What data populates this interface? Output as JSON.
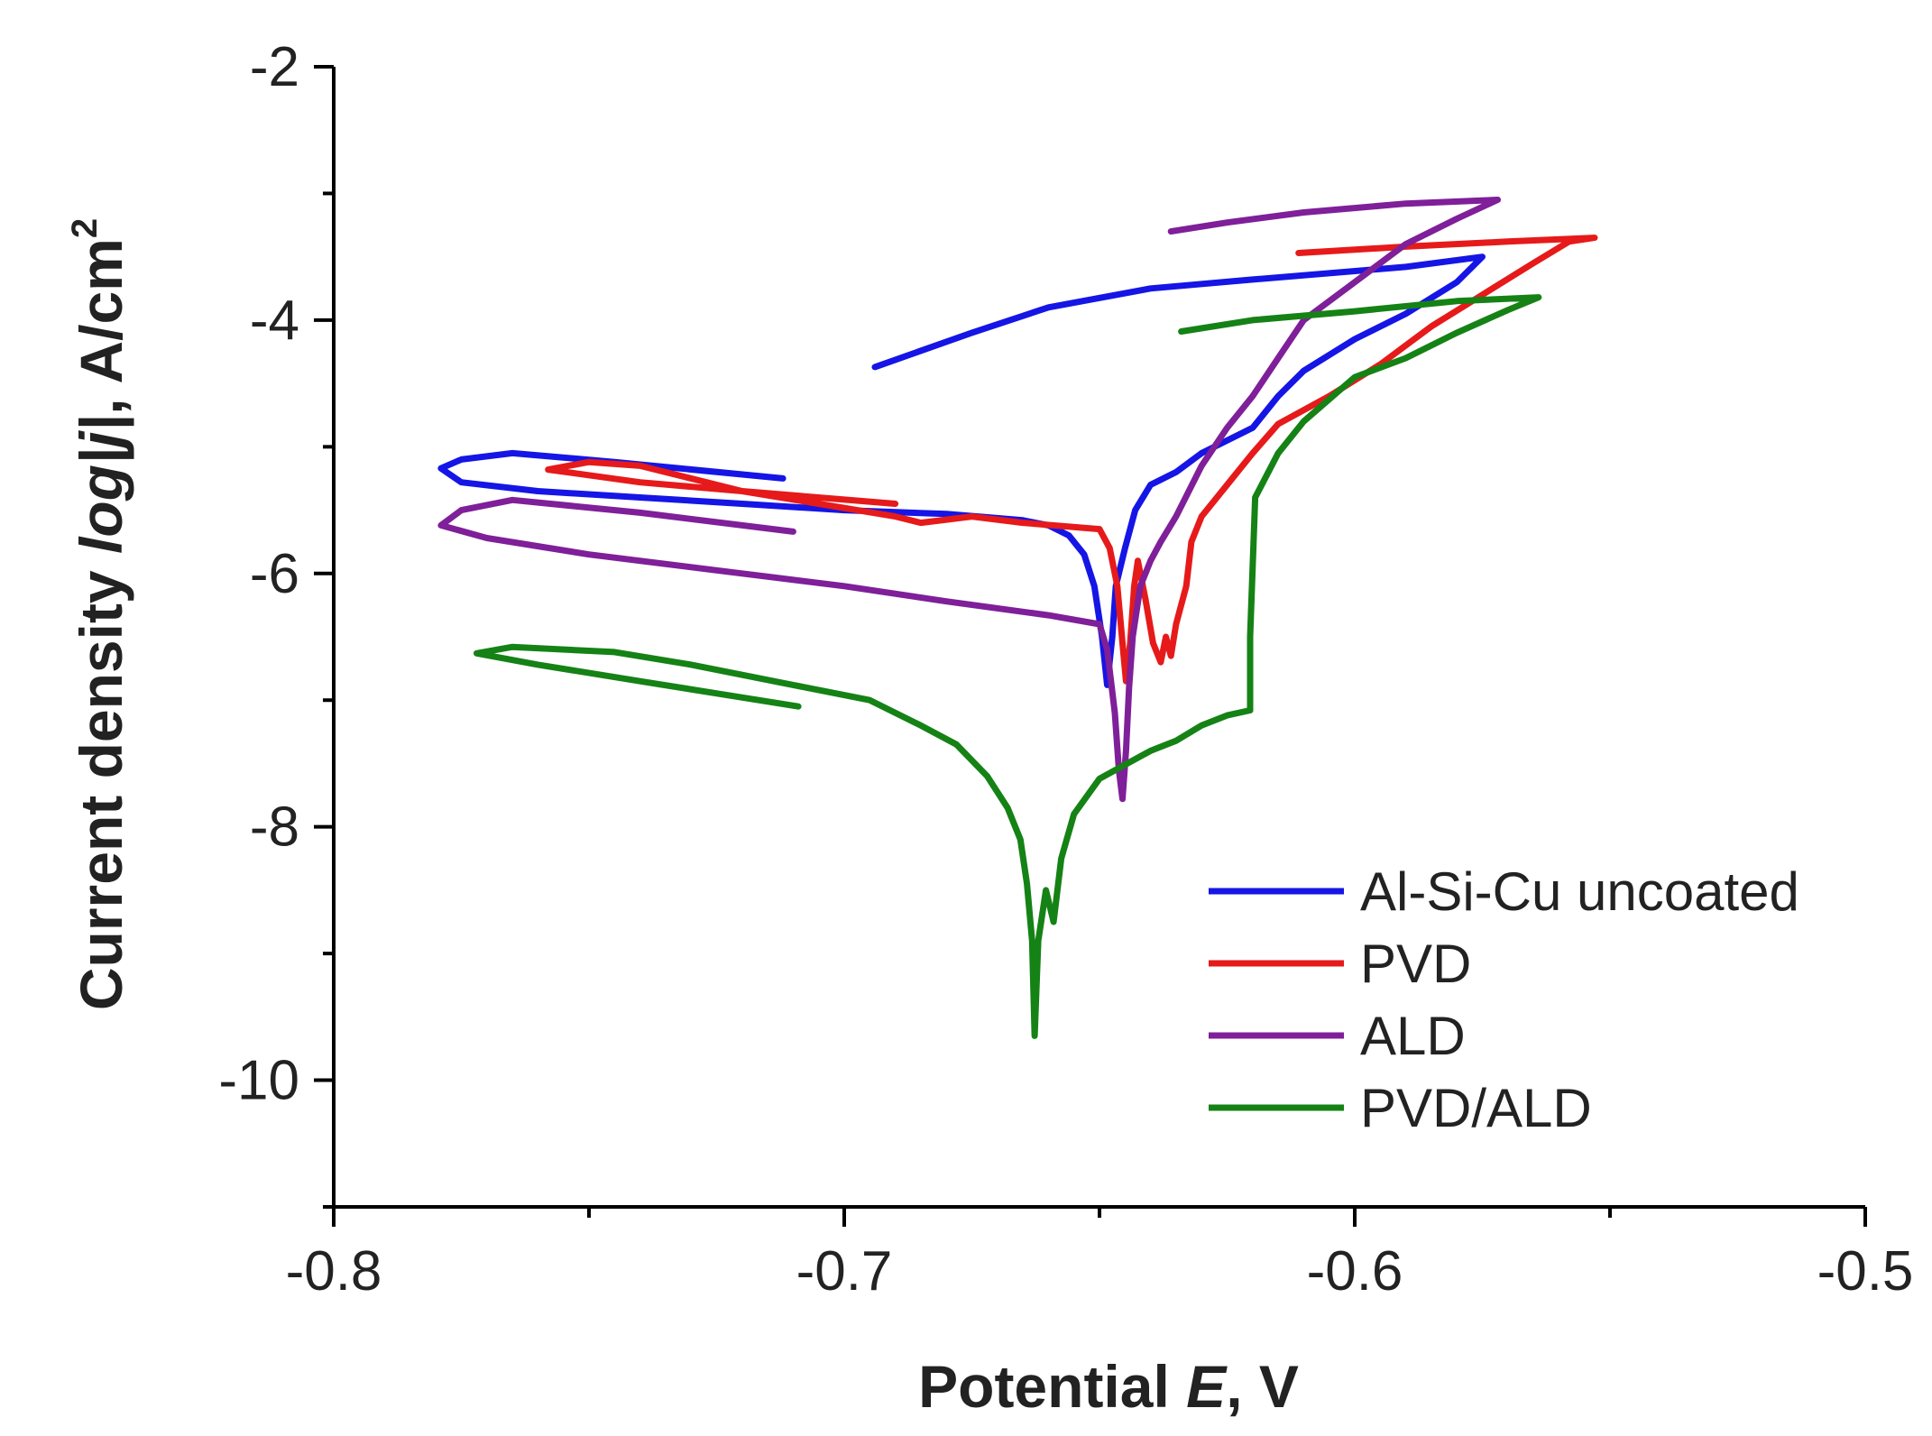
{
  "chart_data": {
    "type": "line",
    "title": "",
    "xlabel": {
      "prefix": "Potential ",
      "italic": "E",
      "suffix": ", V"
    },
    "ylabel": {
      "prefix": "Current density ",
      "italic": "log|j|",
      "suffix": ", A/cm",
      "superscript": "2"
    },
    "xlim": [
      -0.8,
      -0.5
    ],
    "ylim": [
      -11,
      -2
    ],
    "xticks": [
      -0.8,
      -0.7,
      -0.6,
      -0.5
    ],
    "xtick_labels": [
      "-0.8",
      "-0.7",
      "-0.6",
      "-0.5"
    ],
    "xminor": [
      -0.75,
      -0.65,
      -0.55
    ],
    "yticks": [
      -2,
      -4,
      -6,
      -8,
      -10
    ],
    "ytick_labels": [
      "-2",
      "-4",
      "-6",
      "-8",
      "-10"
    ],
    "yminor": [
      -3,
      -5,
      -7,
      -9,
      -11
    ],
    "legend_position": "bottom-right",
    "series": [
      {
        "name": "Al-Si-Cu uncoated",
        "color": "#1515e6",
        "points": [
          [
            -0.712,
            -5.25
          ],
          [
            -0.745,
            -5.12
          ],
          [
            -0.765,
            -5.05
          ],
          [
            -0.775,
            -5.1
          ],
          [
            -0.779,
            -5.17
          ],
          [
            -0.775,
            -5.28
          ],
          [
            -0.76,
            -5.35
          ],
          [
            -0.74,
            -5.4
          ],
          [
            -0.72,
            -5.45
          ],
          [
            -0.7,
            -5.5
          ],
          [
            -0.68,
            -5.53
          ],
          [
            -0.665,
            -5.58
          ],
          [
            -0.66,
            -5.62
          ],
          [
            -0.656,
            -5.7
          ],
          [
            -0.653,
            -5.85
          ],
          [
            -0.651,
            -6.1
          ],
          [
            -0.6495,
            -6.5
          ],
          [
            -0.6485,
            -6.88
          ],
          [
            -0.6475,
            -6.5
          ],
          [
            -0.6468,
            -6.1
          ],
          [
            -0.645,
            -5.8
          ],
          [
            -0.643,
            -5.5
          ],
          [
            -0.64,
            -5.3
          ],
          [
            -0.635,
            -5.2
          ],
          [
            -0.63,
            -5.05
          ],
          [
            -0.62,
            -4.85
          ],
          [
            -0.615,
            -4.6
          ],
          [
            -0.61,
            -4.4
          ],
          [
            -0.6,
            -4.15
          ],
          [
            -0.59,
            -3.95
          ],
          [
            -0.58,
            -3.7
          ],
          [
            -0.575,
            -3.5
          ],
          [
            -0.59,
            -3.58
          ],
          [
            -0.62,
            -3.68
          ],
          [
            -0.64,
            -3.75
          ],
          [
            -0.66,
            -3.9
          ],
          [
            -0.675,
            -4.1
          ],
          [
            -0.694,
            -4.37
          ]
        ]
      },
      {
        "name": "PVD",
        "color": "#e61a1a",
        "points": [
          [
            -0.69,
            -5.45
          ],
          [
            -0.72,
            -5.35
          ],
          [
            -0.74,
            -5.15
          ],
          [
            -0.75,
            -5.12
          ],
          [
            -0.758,
            -5.18
          ],
          [
            -0.74,
            -5.28
          ],
          [
            -0.72,
            -5.35
          ],
          [
            -0.705,
            -5.45
          ],
          [
            -0.69,
            -5.55
          ],
          [
            -0.685,
            -5.6
          ],
          [
            -0.675,
            -5.55
          ],
          [
            -0.665,
            -5.6
          ],
          [
            -0.65,
            -5.65
          ],
          [
            -0.648,
            -5.8
          ],
          [
            -0.6465,
            -6.1
          ],
          [
            -0.6455,
            -6.55
          ],
          [
            -0.6448,
            -6.85
          ],
          [
            -0.644,
            -6.55
          ],
          [
            -0.6432,
            -6.1
          ],
          [
            -0.6425,
            -5.9
          ],
          [
            -0.641,
            -6.2
          ],
          [
            -0.6395,
            -6.55
          ],
          [
            -0.638,
            -6.7
          ],
          [
            -0.637,
            -6.5
          ],
          [
            -0.636,
            -6.65
          ],
          [
            -0.635,
            -6.4
          ],
          [
            -0.633,
            -6.1
          ],
          [
            -0.632,
            -5.75
          ],
          [
            -0.63,
            -5.55
          ],
          [
            -0.625,
            -5.3
          ],
          [
            -0.62,
            -5.05
          ],
          [
            -0.615,
            -4.82
          ],
          [
            -0.605,
            -4.6
          ],
          [
            -0.595,
            -4.35
          ],
          [
            -0.585,
            -4.05
          ],
          [
            -0.575,
            -3.8
          ],
          [
            -0.565,
            -3.55
          ],
          [
            -0.558,
            -3.38
          ],
          [
            -0.553,
            -3.35
          ],
          [
            -0.57,
            -3.38
          ],
          [
            -0.59,
            -3.42
          ],
          [
            -0.611,
            -3.47
          ]
        ]
      },
      {
        "name": "ALD",
        "color": "#7f1f99",
        "points": [
          [
            -0.71,
            -5.67
          ],
          [
            -0.74,
            -5.52
          ],
          [
            -0.765,
            -5.42
          ],
          [
            -0.775,
            -5.5
          ],
          [
            -0.779,
            -5.62
          ],
          [
            -0.77,
            -5.72
          ],
          [
            -0.75,
            -5.85
          ],
          [
            -0.72,
            -6.0
          ],
          [
            -0.7,
            -6.1
          ],
          [
            -0.68,
            -6.22
          ],
          [
            -0.66,
            -6.33
          ],
          [
            -0.65,
            -6.4
          ],
          [
            -0.6485,
            -6.6
          ],
          [
            -0.647,
            -7.1
          ],
          [
            -0.6462,
            -7.55
          ],
          [
            -0.6455,
            -7.78
          ],
          [
            -0.6448,
            -7.4
          ],
          [
            -0.6442,
            -6.9
          ],
          [
            -0.6435,
            -6.5
          ],
          [
            -0.642,
            -6.1
          ],
          [
            -0.64,
            -5.9
          ],
          [
            -0.638,
            -5.75
          ],
          [
            -0.635,
            -5.55
          ],
          [
            -0.63,
            -5.15
          ],
          [
            -0.625,
            -4.85
          ],
          [
            -0.62,
            -4.6
          ],
          [
            -0.615,
            -4.3
          ],
          [
            -0.61,
            -4.0
          ],
          [
            -0.6,
            -3.7
          ],
          [
            -0.59,
            -3.4
          ],
          [
            -0.58,
            -3.2
          ],
          [
            -0.572,
            -3.05
          ],
          [
            -0.59,
            -3.08
          ],
          [
            -0.61,
            -3.15
          ],
          [
            -0.625,
            -3.23
          ],
          [
            -0.636,
            -3.3
          ]
        ]
      },
      {
        "name": "PVD/ALD",
        "color": "#158215",
        "points": [
          [
            -0.709,
            -7.05
          ],
          [
            -0.74,
            -6.85
          ],
          [
            -0.76,
            -6.72
          ],
          [
            -0.772,
            -6.63
          ],
          [
            -0.765,
            -6.58
          ],
          [
            -0.745,
            -6.62
          ],
          [
            -0.73,
            -6.72
          ],
          [
            -0.71,
            -6.88
          ],
          [
            -0.695,
            -7.0
          ],
          [
            -0.685,
            -7.2
          ],
          [
            -0.678,
            -7.35
          ],
          [
            -0.672,
            -7.6
          ],
          [
            -0.668,
            -7.85
          ],
          [
            -0.6655,
            -8.1
          ],
          [
            -0.6642,
            -8.45
          ],
          [
            -0.6632,
            -8.9
          ],
          [
            -0.6627,
            -9.65
          ],
          [
            -0.662,
            -8.9
          ],
          [
            -0.6605,
            -8.5
          ],
          [
            -0.659,
            -8.75
          ],
          [
            -0.6575,
            -8.25
          ],
          [
            -0.655,
            -7.9
          ],
          [
            -0.65,
            -7.62
          ],
          [
            -0.64,
            -7.4
          ],
          [
            -0.635,
            -7.32
          ],
          [
            -0.63,
            -7.2
          ],
          [
            -0.625,
            -7.12
          ],
          [
            -0.6205,
            -7.08
          ],
          [
            -0.6205,
            -6.5
          ],
          [
            -0.6195,
            -5.4
          ],
          [
            -0.615,
            -5.05
          ],
          [
            -0.61,
            -4.8
          ],
          [
            -0.6,
            -4.45
          ],
          [
            -0.59,
            -4.3
          ],
          [
            -0.58,
            -4.1
          ],
          [
            -0.57,
            -3.92
          ],
          [
            -0.564,
            -3.82
          ],
          [
            -0.58,
            -3.85
          ],
          [
            -0.6,
            -3.93
          ],
          [
            -0.62,
            -4.0
          ],
          [
            -0.634,
            -4.09
          ]
        ]
      }
    ]
  }
}
